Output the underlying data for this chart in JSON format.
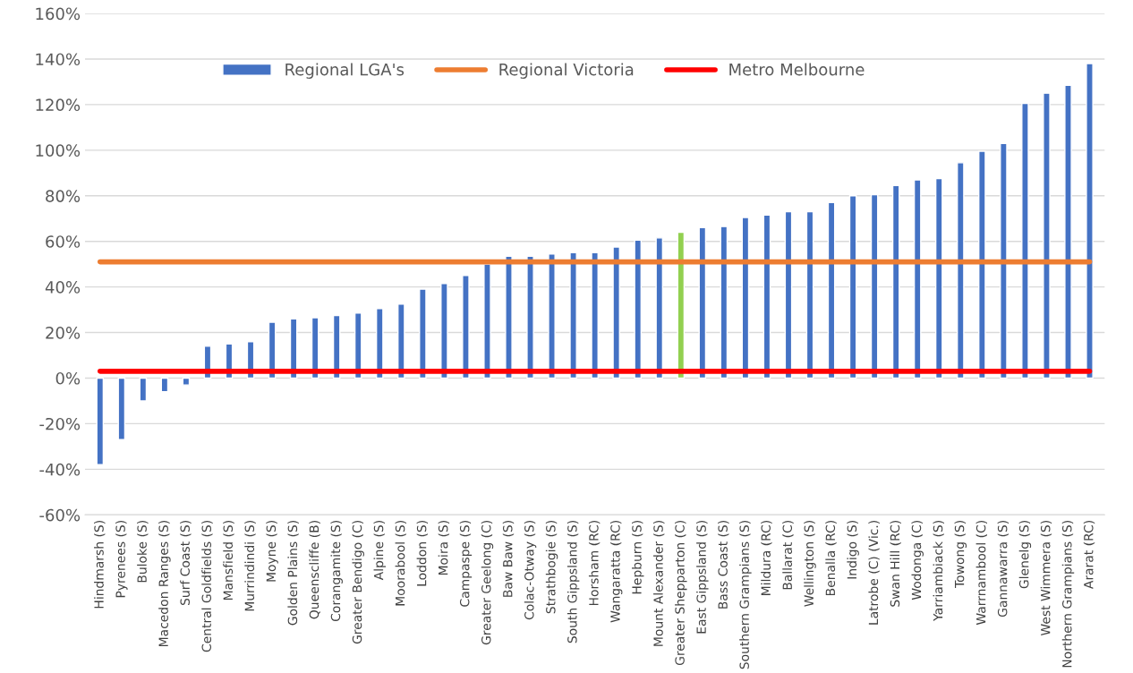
{
  "chart_data": {
    "type": "bar",
    "categories": [
      "Hindmarsh (S)",
      "Pyrenees (S)",
      "Buloke (S)",
      "Macedon Ranges (S)",
      "Surf Coast (S)",
      "Central Goldfields (S)",
      "Mansfield (S)",
      "Murrindindi (S)",
      "Moyne (S)",
      "Golden Plains (S)",
      "Queenscliffe (B)",
      "Corangamite (S)",
      "Greater Bendigo (C)",
      "Alpine (S)",
      "Moorabool (S)",
      "Loddon (S)",
      "Moira (S)",
      "Campaspe (S)",
      "Greater Geelong (C)",
      "Baw Baw (S)",
      "Colac-Otway (S)",
      "Strathbogie (S)",
      "South Gippsland (S)",
      "Horsham (RC)",
      "Wangaratta (RC)",
      "Hepburn (S)",
      "Mount Alexander (S)",
      "Greater Shepparton (C)",
      "East Gippsland (S)",
      "Bass Coast (S)",
      "Southern Grampians (S)",
      "Mildura (RC)",
      "Ballarat (C)",
      "Wellington (S)",
      "Benalla (RC)",
      "Indigo (S)",
      "Latrobe (C) (Vic.)",
      "Swan Hill (RC)",
      "Wodonga (C)",
      "Yarriambiack (S)",
      "Towong (S)",
      "Warrnambool (C)",
      "Gannawarra (S)",
      "Glenelg (S)",
      "West Wimmera (S)",
      "Northern Grampians (S)",
      "Ararat (RC)"
    ],
    "series": [
      {
        "name": "Regional LGA's",
        "colors": [
          "#4472c4",
          "#4472c4",
          "#4472c4",
          "#4472c4",
          "#4472c4",
          "#4472c4",
          "#4472c4",
          "#4472c4",
          "#4472c4",
          "#4472c4",
          "#4472c4",
          "#4472c4",
          "#4472c4",
          "#4472c4",
          "#4472c4",
          "#4472c4",
          "#4472c4",
          "#4472c4",
          "#4472c4",
          "#4472c4",
          "#4472c4",
          "#4472c4",
          "#4472c4",
          "#4472c4",
          "#4472c4",
          "#4472c4",
          "#4472c4",
          "#92d050",
          "#4472c4",
          "#4472c4",
          "#4472c4",
          "#4472c4",
          "#4472c4",
          "#4472c4",
          "#4472c4",
          "#4472c4",
          "#4472c4",
          "#4472c4",
          "#4472c4",
          "#4472c4",
          "#4472c4",
          "#4472c4",
          "#4472c4",
          "#4472c4",
          "#4472c4",
          "#4472c4",
          "#4472c4"
        ],
        "values": [
          -38,
          -27,
          -10,
          -6,
          -3,
          14,
          15,
          16,
          24.5,
          26,
          26.5,
          27.5,
          28.5,
          30.5,
          32.5,
          39,
          41.5,
          45,
          50,
          53.5,
          53.5,
          54.5,
          55,
          55,
          57.5,
          60.5,
          61.5,
          64,
          66,
          66.5,
          70.5,
          71.5,
          73,
          73,
          77,
          80,
          80.5,
          84.5,
          87,
          87.5,
          94.5,
          99.5,
          103,
          120.5,
          125,
          128.5,
          138
        ]
      },
      {
        "name": "Regional Victoria",
        "type": "line",
        "color": "#ed7d31",
        "values": [
          51,
          51,
          51,
          51,
          51,
          51,
          51,
          51,
          51,
          51,
          51,
          51,
          51,
          51,
          51,
          51,
          51,
          51,
          51,
          51,
          51,
          51,
          51,
          51,
          51,
          51,
          51,
          51,
          51,
          51,
          51,
          51,
          51,
          51,
          51,
          51,
          51,
          51,
          51,
          51,
          51,
          51,
          51,
          51,
          51,
          51,
          51
        ]
      },
      {
        "name": "Metro Melbourne",
        "type": "line",
        "color": "#ff0000",
        "values": [
          3,
          3,
          3,
          3,
          3,
          3,
          3,
          3,
          3,
          3,
          3,
          3,
          3,
          3,
          3,
          3,
          3,
          3,
          3,
          3,
          3,
          3,
          3,
          3,
          3,
          3,
          3,
          3,
          3,
          3,
          3,
          3,
          3,
          3,
          3,
          3,
          3,
          3,
          3,
          3,
          3,
          3,
          3,
          3,
          3,
          3,
          3
        ]
      }
    ],
    "ylim": [
      -60,
      160
    ],
    "yticks": [
      {
        "value": -60,
        "label": "-60%"
      },
      {
        "value": -40,
        "label": "-40%"
      },
      {
        "value": -20,
        "label": "-20%"
      },
      {
        "value": 0,
        "label": "0%"
      },
      {
        "value": 20,
        "label": "20%"
      },
      {
        "value": 40,
        "label": "40%"
      },
      {
        "value": 60,
        "label": "60%"
      },
      {
        "value": 80,
        "label": "80%"
      },
      {
        "value": 100,
        "label": "100%"
      },
      {
        "value": 120,
        "label": "120%"
      },
      {
        "value": 140,
        "label": "140%"
      },
      {
        "value": 160,
        "label": "160%"
      }
    ],
    "grid": "y",
    "legend": "top",
    "marker": "none",
    "line_style": "solid"
  }
}
